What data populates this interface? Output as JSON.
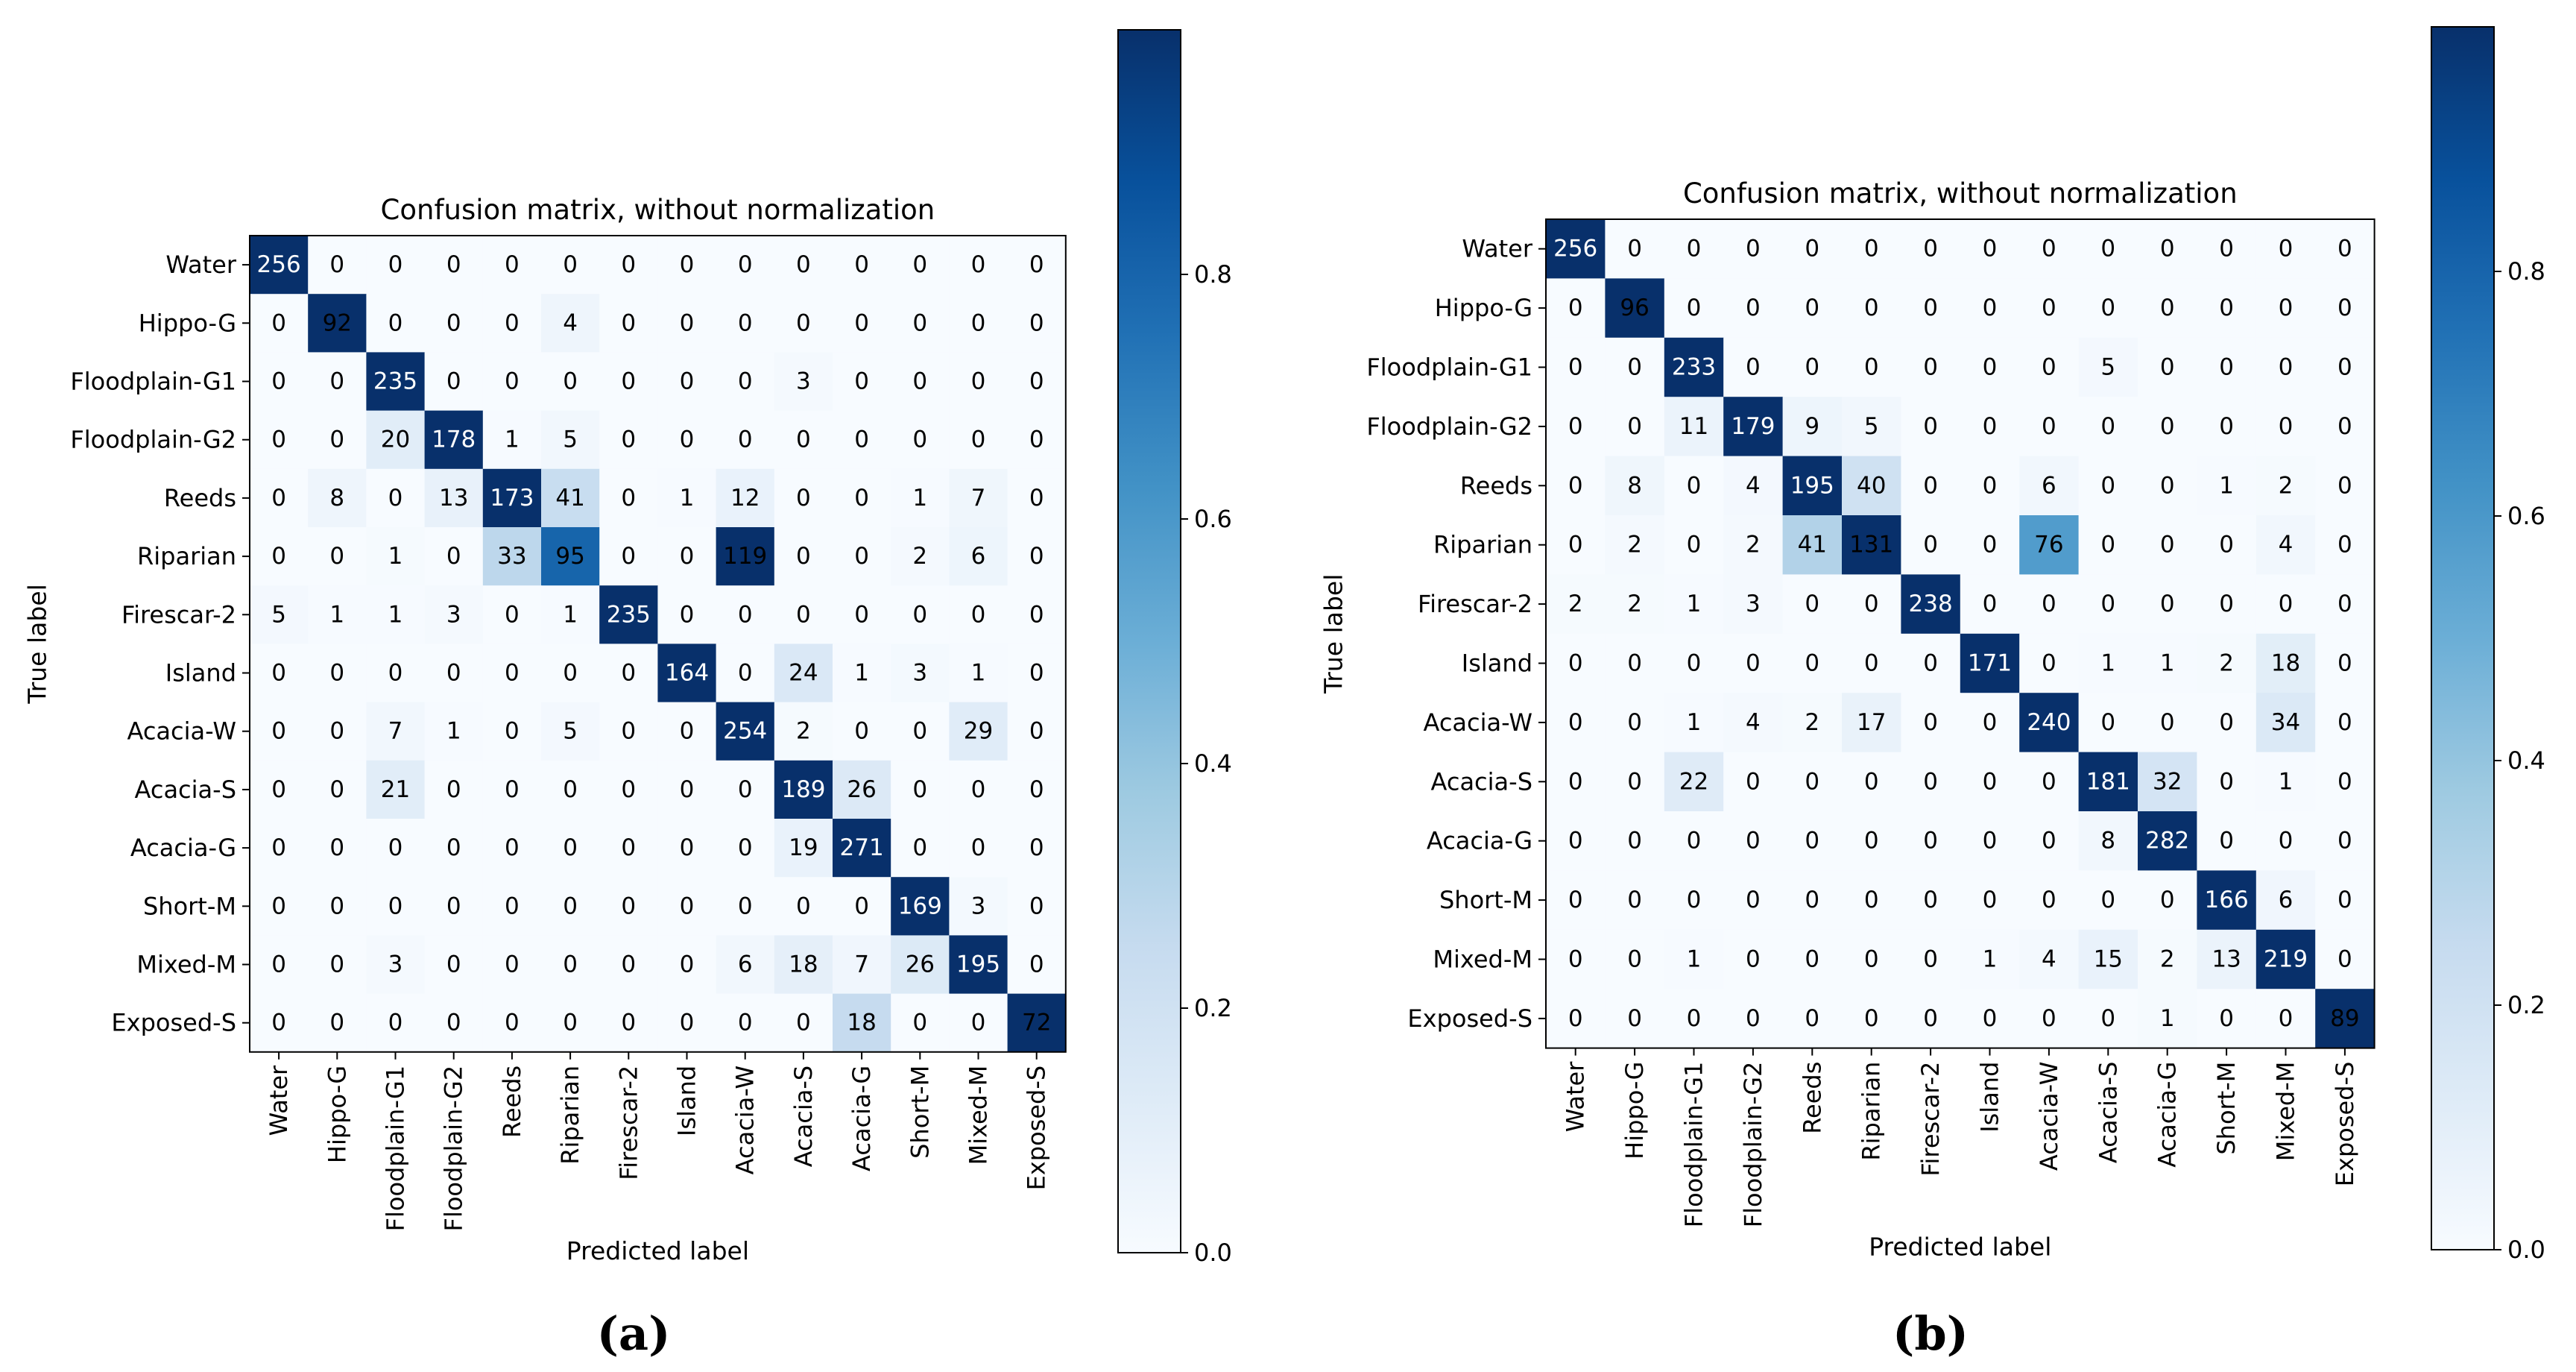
{
  "chart_data": [
    {
      "type": "heatmap",
      "panel_label": "(a)",
      "title": "Confusion matrix, without normalization",
      "xlabel": "Predicted label",
      "ylabel": "True label",
      "labels": [
        "Water",
        "Hippo-G",
        "Floodplain-G1",
        "Floodplain-G2",
        "Reeds",
        "Riparian",
        "Firescar-2",
        "Island",
        "Acacia-W",
        "Acacia-S",
        "Acacia-G",
        "Short-M",
        "Mixed-M",
        "Exposed-S"
      ],
      "matrix": [
        [
          256,
          0,
          0,
          0,
          0,
          0,
          0,
          0,
          0,
          0,
          0,
          0,
          0,
          0
        ],
        [
          0,
          92,
          0,
          0,
          0,
          4,
          0,
          0,
          0,
          0,
          0,
          0,
          0,
          0
        ],
        [
          0,
          0,
          235,
          0,
          0,
          0,
          0,
          0,
          0,
          3,
          0,
          0,
          0,
          0
        ],
        [
          0,
          0,
          20,
          178,
          1,
          5,
          0,
          0,
          0,
          0,
          0,
          0,
          0,
          0
        ],
        [
          0,
          8,
          0,
          13,
          173,
          41,
          0,
          1,
          12,
          0,
          0,
          1,
          7,
          0
        ],
        [
          0,
          0,
          1,
          0,
          33,
          95,
          0,
          0,
          119,
          0,
          0,
          2,
          6,
          0
        ],
        [
          5,
          1,
          1,
          3,
          0,
          1,
          235,
          0,
          0,
          0,
          0,
          0,
          0,
          0
        ],
        [
          0,
          0,
          0,
          0,
          0,
          0,
          0,
          164,
          0,
          24,
          1,
          3,
          1,
          0
        ],
        [
          0,
          0,
          7,
          1,
          0,
          5,
          0,
          0,
          254,
          2,
          0,
          0,
          29,
          0
        ],
        [
          0,
          0,
          21,
          0,
          0,
          0,
          0,
          0,
          0,
          189,
          26,
          0,
          0,
          0
        ],
        [
          0,
          0,
          0,
          0,
          0,
          0,
          0,
          0,
          0,
          19,
          271,
          0,
          0,
          0
        ],
        [
          0,
          0,
          0,
          0,
          0,
          0,
          0,
          0,
          0,
          0,
          0,
          169,
          3,
          0
        ],
        [
          0,
          0,
          3,
          0,
          0,
          0,
          0,
          0,
          6,
          18,
          7,
          26,
          195,
          0
        ],
        [
          0,
          0,
          0,
          0,
          0,
          0,
          0,
          0,
          0,
          0,
          18,
          0,
          0,
          72
        ]
      ],
      "colorbar": {
        "range": [
          0,
          1
        ],
        "ticks": [
          "0.0",
          "0.2",
          "0.4",
          "0.6",
          "0.8"
        ],
        "colormap": "Blues"
      }
    },
    {
      "type": "heatmap",
      "panel_label": "(b)",
      "title": "Confusion matrix, without normalization",
      "xlabel": "Predicted label",
      "ylabel": "True label",
      "labels": [
        "Water",
        "Hippo-G",
        "Floodplain-G1",
        "Floodplain-G2",
        "Reeds",
        "Riparian",
        "Firescar-2",
        "Island",
        "Acacia-W",
        "Acacia-S",
        "Acacia-G",
        "Short-M",
        "Mixed-M",
        "Exposed-S"
      ],
      "matrix": [
        [
          256,
          0,
          0,
          0,
          0,
          0,
          0,
          0,
          0,
          0,
          0,
          0,
          0,
          0
        ],
        [
          0,
          96,
          0,
          0,
          0,
          0,
          0,
          0,
          0,
          0,
          0,
          0,
          0,
          0
        ],
        [
          0,
          0,
          233,
          0,
          0,
          0,
          0,
          0,
          0,
          5,
          0,
          0,
          0,
          0
        ],
        [
          0,
          0,
          11,
          179,
          9,
          5,
          0,
          0,
          0,
          0,
          0,
          0,
          0,
          0
        ],
        [
          0,
          8,
          0,
          4,
          195,
          40,
          0,
          0,
          6,
          0,
          0,
          1,
          2,
          0
        ],
        [
          0,
          2,
          0,
          2,
          41,
          131,
          0,
          0,
          76,
          0,
          0,
          0,
          4,
          0
        ],
        [
          2,
          2,
          1,
          3,
          0,
          0,
          238,
          0,
          0,
          0,
          0,
          0,
          0,
          0
        ],
        [
          0,
          0,
          0,
          0,
          0,
          0,
          0,
          171,
          0,
          1,
          1,
          2,
          18,
          0
        ],
        [
          0,
          0,
          1,
          4,
          2,
          17,
          0,
          0,
          240,
          0,
          0,
          0,
          34,
          0
        ],
        [
          0,
          0,
          22,
          0,
          0,
          0,
          0,
          0,
          0,
          181,
          32,
          0,
          1,
          0
        ],
        [
          0,
          0,
          0,
          0,
          0,
          0,
          0,
          0,
          0,
          8,
          282,
          0,
          0,
          0
        ],
        [
          0,
          0,
          0,
          0,
          0,
          0,
          0,
          0,
          0,
          0,
          0,
          166,
          6,
          0
        ],
        [
          0,
          0,
          1,
          0,
          0,
          0,
          0,
          1,
          4,
          15,
          2,
          13,
          219,
          0
        ],
        [
          0,
          0,
          0,
          0,
          0,
          0,
          0,
          0,
          0,
          0,
          1,
          0,
          0,
          89
        ]
      ],
      "colorbar": {
        "range": [
          0,
          1
        ],
        "ticks": [
          "0.0",
          "0.2",
          "0.4",
          "0.6",
          "0.8"
        ],
        "colormap": "Blues"
      }
    }
  ]
}
